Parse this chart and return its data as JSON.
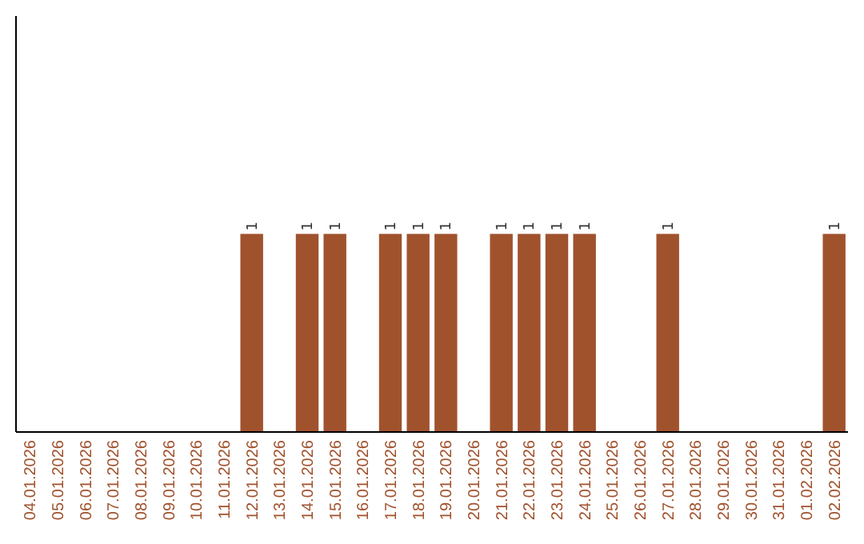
{
  "chart_data": {
    "type": "bar",
    "categories": [
      "04.01.2026",
      "05.01.2026",
      "06.01.2026",
      "07.01.2026",
      "08.01.2026",
      "09.01.2026",
      "10.01.2026",
      "11.01.2026",
      "12.01.2026",
      "13.01.2026",
      "14.01.2026",
      "15.01.2026",
      "16.01.2026",
      "17.01.2026",
      "18.01.2026",
      "19.01.2026",
      "20.01.2026",
      "21.01.2026",
      "22.01.2026",
      "23.01.2026",
      "24.01.2026",
      "25.01.2026",
      "26.01.2026",
      "27.01.2026",
      "28.01.2026",
      "29.01.2026",
      "30.01.2026",
      "31.01.2026",
      "01.02.2026",
      "02.02.2026"
    ],
    "values": [
      0,
      0,
      0,
      0,
      0,
      0,
      0,
      0,
      1,
      0,
      1,
      1,
      0,
      1,
      1,
      1,
      0,
      1,
      1,
      1,
      1,
      0,
      0,
      1,
      0,
      0,
      0,
      0,
      0,
      1
    ],
    "value_labels": [
      null,
      null,
      null,
      null,
      null,
      null,
      null,
      null,
      "1",
      null,
      "1",
      "1",
      null,
      "1",
      "1",
      "1",
      null,
      "1",
      "1",
      "1",
      "1",
      null,
      null,
      "1",
      null,
      null,
      null,
      null,
      null,
      "1"
    ],
    "color": "#a0522d",
    "ylim": [
      0,
      2.1
    ],
    "tick_labels": "x",
    "grid": false
  }
}
